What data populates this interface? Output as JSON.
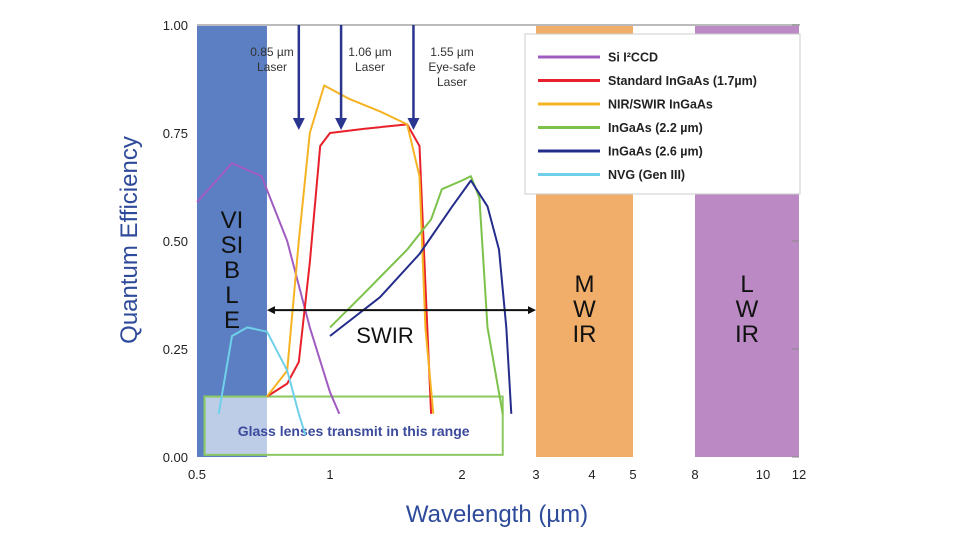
{
  "chart_data": {
    "type": "line",
    "xlabel": "Wavelength (µm)",
    "ylabel": "Quantum Efficiency",
    "x_scale": "log (broken after 5)",
    "xlim": [
      0.5,
      12
    ],
    "ylim": [
      0,
      1
    ],
    "x_ticks": [
      "0.5",
      "1",
      "2",
      "3",
      "4",
      "5",
      "8",
      "10",
      "12"
    ],
    "x_tick_values": [
      0.5,
      1,
      2,
      3,
      4,
      5,
      8,
      10,
      12
    ],
    "y_ticks": [
      "0.00",
      "0.25",
      "0.50",
      "0.75",
      "1.00"
    ],
    "y_tick_values": [
      0,
      0.25,
      0.5,
      0.75,
      1.0
    ],
    "grid": false,
    "legend_position": "top-right",
    "series": [
      {
        "name": "Si I²CCD",
        "color": "#a05cc0",
        "x": [
          0.5,
          0.6,
          0.7,
          0.8,
          0.9,
          1.0,
          1.05
        ],
        "y": [
          0.59,
          0.68,
          0.65,
          0.5,
          0.3,
          0.15,
          0.1
        ]
      },
      {
        "name": "Standard InGaAs (1.7µm)",
        "color": "#e8202a",
        "x": [
          0.72,
          0.8,
          0.85,
          0.9,
          0.95,
          1.0,
          1.2,
          1.5,
          1.6,
          1.65,
          1.7
        ],
        "y": [
          0.14,
          0.17,
          0.22,
          0.45,
          0.72,
          0.75,
          0.76,
          0.77,
          0.72,
          0.4,
          0.1
        ]
      },
      {
        "name": "NIR/SWIR InGaAs",
        "color": "#f5b324",
        "x": [
          0.72,
          0.8,
          0.85,
          0.9,
          0.97,
          1.1,
          1.3,
          1.5,
          1.6,
          1.65,
          1.72
        ],
        "y": [
          0.14,
          0.2,
          0.5,
          0.75,
          0.86,
          0.83,
          0.8,
          0.77,
          0.65,
          0.3,
          0.1
        ]
      },
      {
        "name": "InGaAs (2.2 µm)",
        "color": "#7cc24a",
        "x": [
          1.0,
          1.2,
          1.5,
          1.7,
          1.8,
          2.0,
          2.1,
          2.2,
          2.3,
          2.5
        ],
        "y": [
          0.3,
          0.38,
          0.48,
          0.55,
          0.62,
          0.64,
          0.65,
          0.6,
          0.3,
          0.1
        ]
      },
      {
        "name": "InGaAs (2.6 µm)",
        "color": "#252d8c",
        "x": [
          1.0,
          1.3,
          1.6,
          1.9,
          2.1,
          2.3,
          2.45,
          2.55,
          2.62
        ],
        "y": [
          0.28,
          0.37,
          0.47,
          0.58,
          0.64,
          0.58,
          0.48,
          0.3,
          0.1
        ]
      },
      {
        "name": "NVG (Gen III)",
        "color": "#6fd0ea",
        "x": [
          0.56,
          0.6,
          0.65,
          0.72,
          0.8,
          0.85,
          0.88
        ],
        "y": [
          0.1,
          0.28,
          0.3,
          0.29,
          0.2,
          0.1,
          0.05
        ]
      }
    ],
    "bands": [
      {
        "label": "VISIBLE",
        "from": 0.5,
        "to": 0.72,
        "color": "#5b7fc2"
      },
      {
        "label": "MWIR",
        "from": 3,
        "to": 5,
        "color": "#f1ae6a"
      },
      {
        "label": "LWIR",
        "from": 8,
        "to": 12,
        "color": "#bb8ac4"
      }
    ],
    "swir_range": {
      "label": "SWIR",
      "from": 0.72,
      "to": 3,
      "y": 0.34
    },
    "lasers": [
      {
        "wavelength": 0.85,
        "label1": "0.85 µm",
        "label2": "Laser",
        "label3": ""
      },
      {
        "wavelength": 1.06,
        "label1": "1.06 µm",
        "label2": "Laser",
        "label3": ""
      },
      {
        "wavelength": 1.55,
        "label1": "1.55 µm",
        "label2": "Eye-safe",
        "label3": "Laser"
      }
    ],
    "annotation": {
      "text": "Glass lenses transmit in this range",
      "from": 0.52,
      "to": 2.5,
      "color": "#8bc860"
    }
  }
}
